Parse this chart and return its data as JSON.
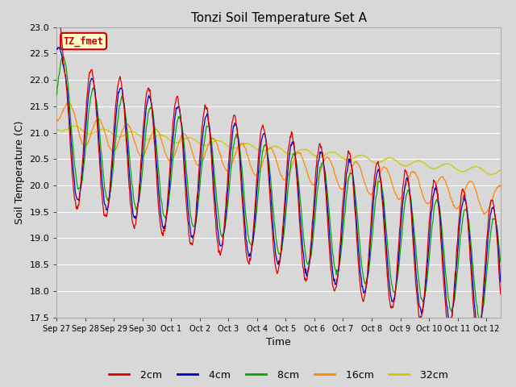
{
  "title": "Tonzi Soil Temperature Set A",
  "xlabel": "Time",
  "ylabel": "Soil Temperature (C)",
  "ylim": [
    17.5,
    23.0
  ],
  "annotation": "TZ_fmet",
  "annotation_bg": "#ffffcc",
  "annotation_border": "#cc0000",
  "annotation_text_color": "#cc0000",
  "bg_color": "#d8d8d8",
  "plot_bg": "#d8d8d8",
  "grid_color": "#ffffff",
  "series_colors": {
    "2cm": "#dd0000",
    "4cm": "#0000cc",
    "8cm": "#00aa00",
    "16cm": "#ff8800",
    "32cm": "#cccc00"
  },
  "xtick_labels": [
    "Sep 27",
    "Sep 28",
    "Sep 29",
    "Sep 30",
    "Oct 1",
    "Oct 2",
    "Oct 3",
    "Oct 4",
    "Oct 5",
    "Oct 6",
    "Oct 7",
    "Oct 8",
    "Oct 9",
    "Oct 10",
    "Oct 11",
    "Oct 12"
  ],
  "ytick_labels": [
    17.5,
    18.0,
    18.5,
    19.0,
    19.5,
    20.0,
    20.5,
    21.0,
    21.5,
    22.0,
    22.5,
    23.0
  ]
}
